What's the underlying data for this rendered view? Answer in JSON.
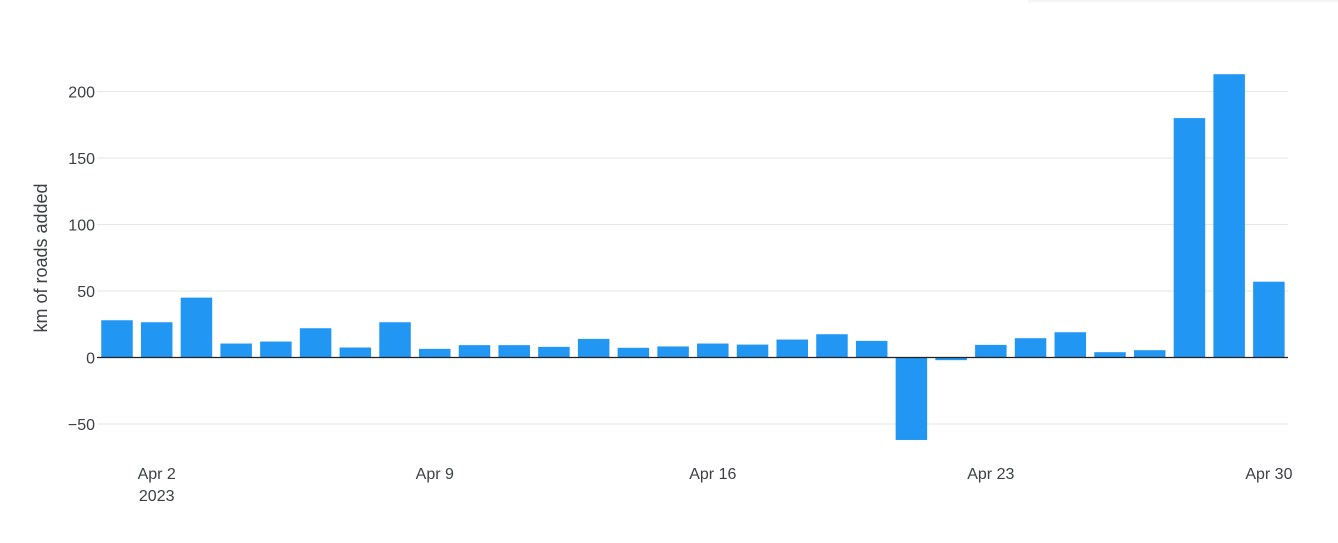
{
  "chart_data": {
    "type": "bar",
    "title": "",
    "xlabel": "",
    "ylabel": "km of roads added",
    "ylim": [
      -62,
      215
    ],
    "y_ticks": [
      -50,
      0,
      50,
      100,
      150,
      200
    ],
    "y_tick_labels": [
      "−50",
      "0",
      "50",
      "100",
      "150",
      "200"
    ],
    "grid": true,
    "legend": "none",
    "bar_color": "#2196f3",
    "categories": [
      "2023-04-01",
      "2023-04-02",
      "2023-04-03",
      "2023-04-04",
      "2023-04-05",
      "2023-04-06",
      "2023-04-07",
      "2023-04-08",
      "2023-04-09",
      "2023-04-10",
      "2023-04-11",
      "2023-04-12",
      "2023-04-13",
      "2023-04-14",
      "2023-04-15",
      "2023-04-16",
      "2023-04-17",
      "2023-04-18",
      "2023-04-19",
      "2023-04-20",
      "2023-04-21",
      "2023-04-22",
      "2023-04-23",
      "2023-04-24",
      "2023-04-25",
      "2023-04-26",
      "2023-04-27",
      "2023-04-28",
      "2023-04-29",
      "2023-04-30"
    ],
    "values": [
      28,
      26.5,
      45,
      10.5,
      12,
      22,
      7.5,
      26.5,
      6.5,
      9.3,
      9.3,
      8,
      14,
      7.3,
      8.3,
      10.5,
      9.7,
      13.5,
      17.5,
      12.5,
      -62,
      -2,
      9.5,
      14.5,
      19,
      4,
      5.5,
      180,
      213,
      57
    ],
    "x_ticks": [
      {
        "date": "2023-04-02",
        "label": "Apr 2",
        "sublabel": "2023"
      },
      {
        "date": "2023-04-09",
        "label": "Apr 9",
        "sublabel": ""
      },
      {
        "date": "2023-04-16",
        "label": "Apr 16",
        "sublabel": ""
      },
      {
        "date": "2023-04-23",
        "label": "Apr 23",
        "sublabel": ""
      },
      {
        "date": "2023-04-30",
        "label": "Apr 30",
        "sublabel": ""
      }
    ]
  }
}
